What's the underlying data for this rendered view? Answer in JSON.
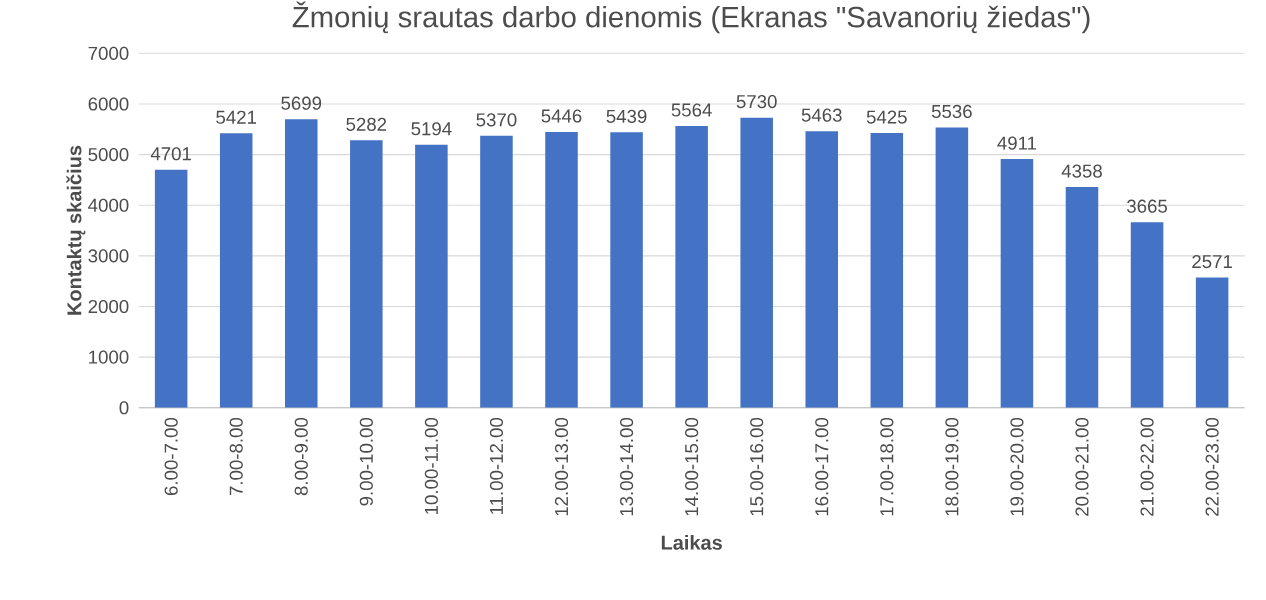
{
  "chart_data": {
    "type": "bar",
    "title": "Žmonių srautas darbo dienomis (Ekranas \"Savanorių žiedas\")",
    "xlabel": "Laikas",
    "ylabel": "Kontaktų skaičius",
    "categories": [
      "6.00-7.00",
      "7.00-8.00",
      "8.00-9.00",
      "9.00-10.00",
      "10.00-11.00",
      "11.00-12.00",
      "12.00-13.00",
      "13.00-14.00",
      "14.00-15.00",
      "15.00-16.00",
      "16.00-17.00",
      "17.00-18.00",
      "18.00-19.00",
      "19.00-20.00",
      "20.00-21.00",
      "21.00-22.00",
      "22.00-23.00"
    ],
    "values": [
      4701,
      5421,
      5699,
      5282,
      5194,
      5370,
      5446,
      5439,
      5564,
      5730,
      5463,
      5425,
      5536,
      4911,
      4358,
      3665,
      2571
    ],
    "color": "#4472c4",
    "ylim": [
      0,
      7000
    ],
    "yticks": [
      0,
      1000,
      2000,
      3000,
      4000,
      5000,
      6000,
      7000
    ],
    "grid": "y",
    "data_labels": true
  }
}
